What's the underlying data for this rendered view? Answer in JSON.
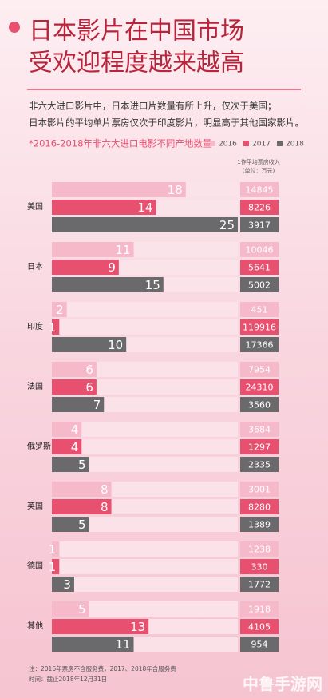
{
  "chart_data": {
    "type": "bar",
    "title": [
      "日本影片在中国市场",
      "受欢迎程度越来越高"
    ],
    "subtitle": [
      "非六大进口影片中，日本进口片数量有所上升，仅次于美国；",
      "日本影片的平均单片票房仅次于印度影片，明显高于其他国家影片。"
    ],
    "caption": "*2016-2018年非六大进口电影不同产地数量",
    "categories": [
      "美国",
      "日本",
      "印度",
      "法国",
      "俄罗斯",
      "英国",
      "德国",
      "其他"
    ],
    "xlim": [
      0,
      25
    ],
    "legend": "top-right",
    "series": [
      {
        "name": "2016",
        "color": "#f5b9c9",
        "values": [
          18,
          11,
          2,
          6,
          4,
          8,
          1,
          5
        ]
      },
      {
        "name": "2017",
        "color": "#e8506f",
        "values": [
          14,
          9,
          1,
          6,
          4,
          8,
          1,
          13
        ]
      },
      {
        "name": "2018",
        "color": "#6a6a6c",
        "values": [
          25,
          15,
          10,
          7,
          5,
          5,
          3,
          11
        ]
      }
    ],
    "revenue": {
      "title": "1作平均票房收入",
      "unit": "(单位：万元)",
      "values": [
        [
          14845,
          8226,
          3917
        ],
        [
          10046,
          5641,
          5002
        ],
        [
          451,
          119916,
          17366
        ],
        [
          7954,
          24310,
          3560
        ],
        [
          3684,
          1297,
          2335
        ],
        [
          3001,
          8280,
          1389
        ],
        [
          1238,
          330,
          1772
        ],
        [
          1918,
          4105,
          954
        ]
      ]
    },
    "notes": [
      "注：2016年票房不含服务费，2017、2018年含服务费",
      "时间：截止2018年12月31日"
    ],
    "watermark": "中鲁手游网"
  }
}
